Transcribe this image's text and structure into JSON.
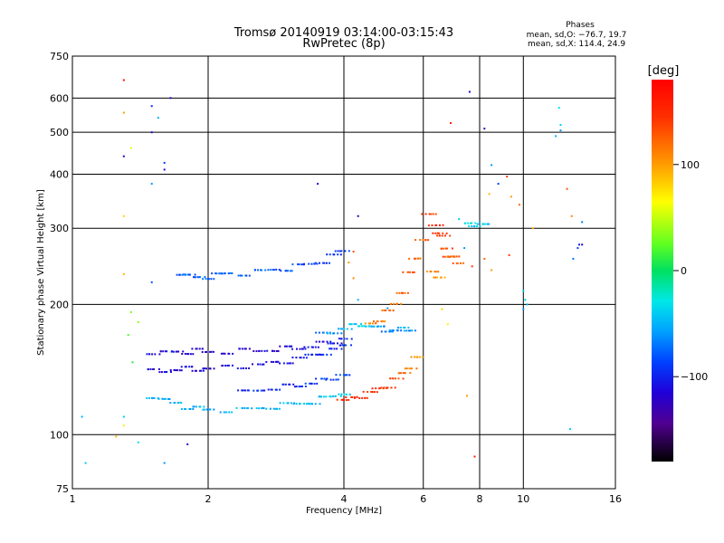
{
  "chart_data": {
    "type": "scatter",
    "title": "Tromsø 20140919 03:14:00-03:15:43",
    "subtitle": "RwPretec (8p)",
    "xlabel": "Frequency [MHz]",
    "ylabel": "Stationary phase Virtual Height [km]",
    "x_scale": "log",
    "y_scale": "log",
    "xlim": [
      1,
      16
    ],
    "ylim": [
      75,
      750
    ],
    "x_ticks": [
      1,
      2,
      4,
      6,
      8,
      10,
      16
    ],
    "y_ticks": [
      75,
      100,
      200,
      300,
      400,
      500,
      600,
      750
    ],
    "grid": true,
    "stats": {
      "heading": "Phases",
      "line_o": "mean, sd,O: −76.7, 19.7",
      "line_x": "mean, sd,X: 114.4, 24.9"
    },
    "colorbar": {
      "label": "[deg]",
      "ticks": [
        100,
        0,
        -100
      ],
      "range": [
        -180,
        180
      ],
      "colormap": "rainbow"
    },
    "series": [
      {
        "role": "trace",
        "points": [
          [
            1.75,
            237,
            -80
          ],
          [
            1.8,
            233,
            -75
          ],
          [
            1.9,
            230,
            -78
          ],
          [
            2.0,
            232,
            -75
          ],
          [
            2.1,
            234,
            -80
          ],
          [
            2.2,
            235,
            -72
          ],
          [
            2.4,
            236,
            -78
          ],
          [
            2.6,
            238,
            -75
          ],
          [
            2.8,
            240,
            -82
          ],
          [
            3.0,
            242,
            -80
          ],
          [
            3.2,
            245,
            -85
          ],
          [
            3.4,
            248,
            -88
          ],
          [
            3.6,
            252,
            -90
          ],
          [
            3.8,
            258,
            -95
          ],
          [
            3.95,
            266,
            -88
          ],
          [
            1.5,
            155,
            -110
          ],
          [
            1.6,
            154,
            -115
          ],
          [
            1.7,
            156,
            -112
          ],
          [
            1.8,
            155,
            -118
          ],
          [
            1.9,
            156,
            -115
          ],
          [
            2.0,
            156,
            -120
          ],
          [
            2.2,
            155,
            -118
          ],
          [
            2.4,
            156,
            -116
          ],
          [
            2.6,
            157,
            -120
          ],
          [
            2.8,
            157,
            -118
          ],
          [
            3.0,
            158,
            -115
          ],
          [
            3.2,
            159,
            -110
          ],
          [
            3.4,
            160,
            -108
          ],
          [
            3.6,
            162,
            -112
          ],
          [
            3.8,
            164,
            -105
          ],
          [
            4.0,
            167,
            -100
          ],
          [
            1.5,
            140,
            -115
          ],
          [
            1.6,
            141,
            -112
          ],
          [
            1.7,
            141,
            -118
          ],
          [
            1.8,
            142,
            -110
          ],
          [
            1.9,
            142,
            -115
          ],
          [
            2.0,
            142,
            -118
          ],
          [
            2.2,
            143,
            -112
          ],
          [
            2.4,
            144,
            -110
          ],
          [
            2.6,
            145,
            -114
          ],
          [
            2.8,
            146,
            -112
          ],
          [
            3.0,
            148,
            -108
          ],
          [
            3.2,
            150,
            -104
          ],
          [
            3.4,
            152,
            -100
          ],
          [
            3.6,
            155,
            -95
          ],
          [
            3.8,
            157,
            -98
          ],
          [
            4.0,
            160,
            -92
          ],
          [
            1.5,
            123,
            -50
          ],
          [
            1.6,
            120,
            -55
          ],
          [
            1.7,
            118,
            -48
          ],
          [
            1.8,
            116,
            -52
          ],
          [
            1.9,
            115,
            -50
          ],
          [
            2.0,
            114,
            -55
          ],
          [
            2.2,
            114,
            -50
          ],
          [
            2.4,
            114,
            -48
          ],
          [
            2.6,
            115,
            -52
          ],
          [
            2.8,
            116,
            -50
          ],
          [
            3.0,
            117,
            -48
          ],
          [
            3.2,
            118,
            -45
          ],
          [
            3.4,
            119,
            -50
          ],
          [
            3.6,
            121,
            -45
          ],
          [
            3.8,
            123,
            -42
          ],
          [
            4.0,
            125,
            -40
          ],
          [
            2.4,
            125,
            -100
          ],
          [
            2.6,
            127,
            -95
          ],
          [
            2.8,
            128,
            -98
          ],
          [
            3.0,
            129,
            -100
          ],
          [
            3.2,
            130,
            -95
          ],
          [
            3.4,
            132,
            -92
          ],
          [
            3.6,
            133,
            -90
          ],
          [
            3.8,
            135,
            -88
          ],
          [
            4.0,
            138,
            -85
          ],
          [
            3.6,
            170,
            -70
          ],
          [
            3.8,
            173,
            -60
          ],
          [
            4.0,
            176,
            -50
          ],
          [
            4.2,
            178,
            -40
          ],
          [
            4.4,
            180,
            -30
          ],
          [
            4.6,
            178,
            -45
          ],
          [
            4.8,
            176,
            -60
          ],
          [
            5.0,
            175,
            -70
          ],
          [
            5.2,
            174,
            -65
          ],
          [
            5.4,
            175,
            -50
          ],
          [
            5.6,
            176,
            -60
          ],
          [
            4.0,
            120,
            150
          ],
          [
            4.2,
            121,
            155
          ],
          [
            4.4,
            123,
            150
          ],
          [
            4.6,
            125,
            145
          ],
          [
            4.8,
            127,
            150
          ],
          [
            5.0,
            130,
            140
          ],
          [
            5.2,
            134,
            135
          ],
          [
            5.4,
            138,
            120
          ],
          [
            5.6,
            144,
            110
          ],
          [
            5.8,
            150,
            100
          ],
          [
            4.6,
            180,
            110
          ],
          [
            4.8,
            185,
            115
          ],
          [
            5.0,
            192,
            120
          ],
          [
            5.2,
            200,
            115
          ],
          [
            5.4,
            215,
            125
          ],
          [
            5.6,
            235,
            130
          ],
          [
            5.8,
            255,
            120
          ],
          [
            6.0,
            285,
            125
          ],
          [
            6.2,
            320,
            140
          ],
          [
            6.4,
            305,
            150
          ],
          [
            6.5,
            295,
            145
          ],
          [
            6.6,
            285,
            140
          ],
          [
            6.7,
            270,
            135
          ],
          [
            6.8,
            260,
            130
          ],
          [
            7.0,
            255,
            125
          ],
          [
            7.2,
            250,
            120
          ],
          [
            6.3,
            240,
            110
          ],
          [
            6.5,
            228,
            100
          ],
          [
            7.6,
            310,
            -30
          ],
          [
            7.8,
            305,
            -40
          ],
          [
            8.2,
            303,
            -45
          ]
        ]
      },
      {
        "role": "scatter",
        "points": [
          [
            1.3,
            660,
            175
          ],
          [
            1.5,
            575,
            -95
          ],
          [
            1.55,
            540,
            -50
          ],
          [
            1.3,
            555,
            100
          ],
          [
            1.65,
            600,
            -110
          ],
          [
            1.5,
            500,
            -120
          ],
          [
            1.3,
            440,
            -120
          ],
          [
            1.6,
            425,
            -90
          ],
          [
            1.35,
            460,
            60
          ],
          [
            1.6,
            410,
            -110
          ],
          [
            1.5,
            380,
            -60
          ],
          [
            1.3,
            320,
            80
          ],
          [
            1.3,
            235,
            90
          ],
          [
            1.5,
            225,
            -80
          ],
          [
            1.35,
            192,
            30
          ],
          [
            1.3,
            110,
            -40
          ],
          [
            1.3,
            105,
            70
          ],
          [
            1.05,
            110,
            -50
          ],
          [
            1.07,
            86,
            -40
          ],
          [
            1.4,
            96,
            -30
          ],
          [
            1.6,
            86,
            -60
          ],
          [
            1.8,
            95,
            -120
          ],
          [
            1.25,
            99,
            90
          ],
          [
            1.33,
            170,
            20
          ],
          [
            1.36,
            147,
            10
          ],
          [
            1.4,
            182,
            40
          ],
          [
            1.45,
            75,
            -120
          ],
          [
            3.5,
            380,
            -120
          ],
          [
            4.3,
            320,
            -130
          ],
          [
            4.2,
            265,
            130
          ],
          [
            4.1,
            250,
            100
          ],
          [
            4.2,
            230,
            110
          ],
          [
            4.3,
            205,
            -50
          ],
          [
            5.0,
            196,
            -60
          ],
          [
            7.6,
            620,
            -120
          ],
          [
            6.9,
            525,
            150
          ],
          [
            8.2,
            510,
            -130
          ],
          [
            8.5,
            420,
            -60
          ],
          [
            8.8,
            380,
            -90
          ],
          [
            9.2,
            395,
            140
          ],
          [
            9.4,
            355,
            100
          ],
          [
            9.8,
            340,
            120
          ],
          [
            8.4,
            360,
            90
          ],
          [
            9.3,
            260,
            140
          ],
          [
            8.5,
            240,
            100
          ],
          [
            8.0,
            310,
            -50
          ],
          [
            7.2,
            315,
            -40
          ],
          [
            7.4,
            270,
            -60
          ],
          [
            7.7,
            245,
            140
          ],
          [
            8.2,
            255,
            120
          ],
          [
            7.8,
            89,
            160
          ],
          [
            7.5,
            123,
            100
          ],
          [
            6.6,
            195,
            80
          ],
          [
            6.8,
            180,
            70
          ],
          [
            10.0,
            215,
            -40
          ],
          [
            10.1,
            205,
            -40
          ],
          [
            10.2,
            200,
            -50
          ],
          [
            10.0,
            195,
            -60
          ],
          [
            12.0,
            570,
            -30
          ],
          [
            12.1,
            520,
            -40
          ],
          [
            11.8,
            490,
            -50
          ],
          [
            12.1,
            505,
            -60
          ],
          [
            12.5,
            370,
            130
          ],
          [
            12.8,
            320,
            110
          ],
          [
            13.5,
            310,
            -70
          ],
          [
            13.3,
            275,
            -100
          ],
          [
            13.5,
            275,
            -120
          ],
          [
            13.2,
            270,
            -90
          ],
          [
            12.9,
            255,
            -70
          ],
          [
            12.7,
            103,
            -40
          ],
          [
            10.5,
            300,
            90
          ]
        ]
      }
    ]
  }
}
